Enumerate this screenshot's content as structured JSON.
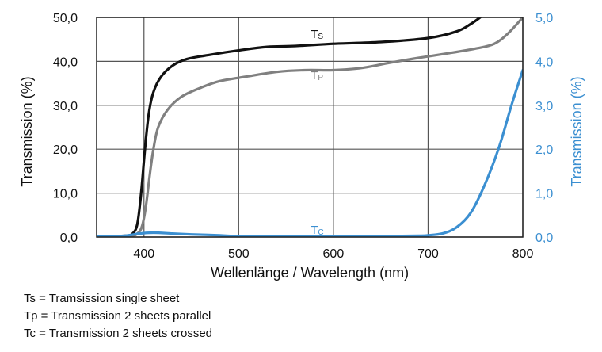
{
  "chart_data": {
    "type": "line",
    "title": "",
    "xlabel": "Wellenlänge / Wavelength (nm)",
    "ylabel_left": "Transmission (%)",
    "ylabel_right": "Transmission (%)",
    "xlim": [
      350,
      800
    ],
    "ylim_left": [
      0,
      50
    ],
    "ylim_right": [
      0,
      5
    ],
    "grid": true,
    "x_ticks": [
      400,
      500,
      600,
      700,
      800
    ],
    "x_tick_labels": [
      "400",
      "500",
      "600",
      "700",
      "800"
    ],
    "y_ticks_left": [
      0,
      10,
      20,
      30,
      40,
      50
    ],
    "y_tick_labels_left": [
      "0,0",
      "10,0",
      "20,0",
      "30,0",
      "40,0",
      "50,0"
    ],
    "y_ticks_right": [
      0,
      1,
      2,
      3,
      4,
      5
    ],
    "y_tick_labels_right": [
      "0,0",
      "1,0",
      "2,0",
      "3,0",
      "4,0",
      "5,0"
    ],
    "series": [
      {
        "name": "Ts",
        "label_main": "T",
        "label_sub": "S",
        "axis": "left",
        "color": "#111111",
        "label_at": [
          576,
          45.3
        ],
        "points": [
          [
            350,
            0.2
          ],
          [
            380,
            0.3
          ],
          [
            388,
            0.8
          ],
          [
            393,
            3
          ],
          [
            397,
            10
          ],
          [
            401,
            20
          ],
          [
            405,
            28
          ],
          [
            410,
            33
          ],
          [
            418,
            36.5
          ],
          [
            430,
            39
          ],
          [
            445,
            40.5
          ],
          [
            470,
            41.5
          ],
          [
            500,
            42.5
          ],
          [
            530,
            43.3
          ],
          [
            560,
            43.5
          ],
          [
            600,
            44
          ],
          [
            650,
            44.4
          ],
          [
            700,
            45.3
          ],
          [
            730,
            46.8
          ],
          [
            745,
            48.5
          ],
          [
            755,
            50
          ]
        ]
      },
      {
        "name": "Tp",
        "label_main": "T",
        "label_sub": "P",
        "axis": "left",
        "color": "#808080",
        "label_at": [
          576,
          35.9
        ],
        "points": [
          [
            350,
            0.2
          ],
          [
            385,
            0.3
          ],
          [
            393,
            0.8
          ],
          [
            398,
            2.5
          ],
          [
            402,
            7
          ],
          [
            406,
            14
          ],
          [
            410,
            20
          ],
          [
            415,
            25
          ],
          [
            425,
            29
          ],
          [
            440,
            32
          ],
          [
            460,
            34
          ],
          [
            480,
            35.5
          ],
          [
            510,
            36.6
          ],
          [
            540,
            37.6
          ],
          [
            570,
            38
          ],
          [
            600,
            38
          ],
          [
            630,
            38.5
          ],
          [
            660,
            39.7
          ],
          [
            690,
            40.8
          ],
          [
            720,
            41.8
          ],
          [
            750,
            42.9
          ],
          [
            770,
            44
          ],
          [
            785,
            46.5
          ],
          [
            800,
            50
          ]
        ]
      },
      {
        "name": "Tc",
        "label_main": "T",
        "label_sub": "C",
        "axis": "right",
        "color": "#3b8fd1",
        "label_at": [
          576,
          0.07
        ],
        "points": [
          [
            350,
            0.01
          ],
          [
            380,
            0.03
          ],
          [
            395,
            0.08
          ],
          [
            410,
            0.1
          ],
          [
            430,
            0.08
          ],
          [
            450,
            0.06
          ],
          [
            480,
            0.04
          ],
          [
            500,
            0.02
          ],
          [
            550,
            0.02
          ],
          [
            600,
            0.02
          ],
          [
            650,
            0.02
          ],
          [
            690,
            0.03
          ],
          [
            700,
            0.04
          ],
          [
            715,
            0.08
          ],
          [
            730,
            0.22
          ],
          [
            745,
            0.55
          ],
          [
            760,
            1.2
          ],
          [
            775,
            2.05
          ],
          [
            788,
            3.0
          ],
          [
            800,
            3.8
          ]
        ]
      }
    ]
  },
  "legend": [
    "Ts = Tramsission single sheet",
    "Tp = Transmission 2 sheets parallel",
    "Tc = Transmission 2 sheets crossed"
  ]
}
